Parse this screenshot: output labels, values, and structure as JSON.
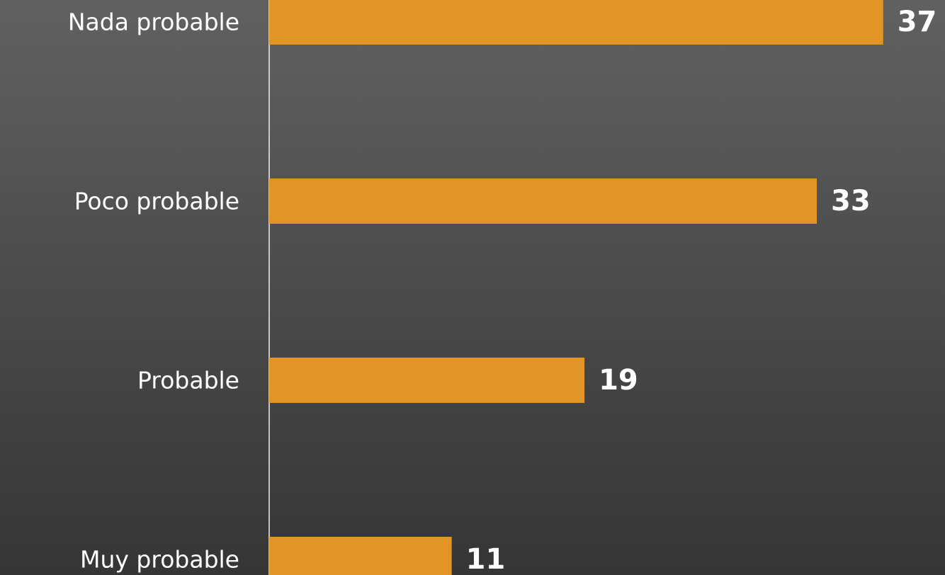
{
  "chart_data": {
    "type": "hbar",
    "categories": [
      "Nada probable",
      "Poco probable",
      "Probable",
      "Muy probable"
    ],
    "values": [
      37,
      33,
      19,
      11
    ],
    "color": "#e09526",
    "xlim": [
      0,
      40
    ]
  }
}
